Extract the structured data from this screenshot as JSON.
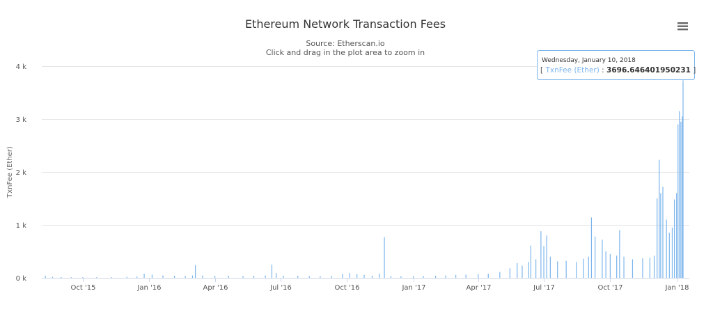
{
  "chart_data": {
    "type": "bar",
    "title": "Ethereum Network Transaction Fees",
    "subtitle_source": "Source: Etherscan.io",
    "subtitle_hint": "Click and drag in the plot area to zoom in",
    "ylabel": "TxnFee (Ether)",
    "xlabel": "",
    "ylim": [
      0,
      4000
    ],
    "y_ticks": [
      "0 k",
      "1 k",
      "2 k",
      "3 k",
      "4 k"
    ],
    "x_range": [
      "2015-08-07",
      "2018-01-10"
    ],
    "x_ticks": [
      {
        "date": "2015-10-01",
        "label": "Oct '15"
      },
      {
        "date": "2016-01-01",
        "label": "Jan '16"
      },
      {
        "date": "2016-04-01",
        "label": "Apr '16"
      },
      {
        "date": "2016-07-01",
        "label": "Jul '16"
      },
      {
        "date": "2016-10-01",
        "label": "Oct '16"
      },
      {
        "date": "2017-01-01",
        "label": "Jan '17"
      },
      {
        "date": "2017-04-01",
        "label": "Apr '17"
      },
      {
        "date": "2017-07-01",
        "label": "Jul '17"
      },
      {
        "date": "2017-10-01",
        "label": "Oct '17"
      },
      {
        "date": "2018-01-01",
        "label": "Jan '18"
      }
    ],
    "series": [
      {
        "name": "TxnFee (Ether)",
        "color": "#7cb5ec",
        "points": [
          [
            "2015-08-10",
            40
          ],
          [
            "2015-08-20",
            20
          ],
          [
            "2015-09-01",
            15
          ],
          [
            "2015-09-15",
            10
          ],
          [
            "2015-10-01",
            12
          ],
          [
            "2015-10-20",
            10
          ],
          [
            "2015-11-10",
            12
          ],
          [
            "2015-12-01",
            18
          ],
          [
            "2015-12-15",
            25
          ],
          [
            "2015-12-25",
            80
          ],
          [
            "2016-01-05",
            60
          ],
          [
            "2016-01-20",
            45
          ],
          [
            "2016-02-05",
            40
          ],
          [
            "2016-02-20",
            35
          ],
          [
            "2016-03-01",
            45
          ],
          [
            "2016-03-05",
            240
          ],
          [
            "2016-03-15",
            45
          ],
          [
            "2016-04-01",
            40
          ],
          [
            "2016-04-20",
            40
          ],
          [
            "2016-05-10",
            35
          ],
          [
            "2016-05-25",
            40
          ],
          [
            "2016-06-10",
            45
          ],
          [
            "2016-06-19",
            250
          ],
          [
            "2016-06-25",
            90
          ],
          [
            "2016-07-05",
            40
          ],
          [
            "2016-07-25",
            40
          ],
          [
            "2016-08-10",
            30
          ],
          [
            "2016-08-25",
            30
          ],
          [
            "2016-09-10",
            35
          ],
          [
            "2016-09-25",
            75
          ],
          [
            "2016-10-05",
            90
          ],
          [
            "2016-10-15",
            70
          ],
          [
            "2016-10-25",
            55
          ],
          [
            "2016-11-05",
            40
          ],
          [
            "2016-11-15",
            80
          ],
          [
            "2016-11-22",
            770
          ],
          [
            "2016-12-01",
            35
          ],
          [
            "2016-12-15",
            30
          ],
          [
            "2017-01-01",
            30
          ],
          [
            "2017-01-15",
            35
          ],
          [
            "2017-02-01",
            40
          ],
          [
            "2017-02-15",
            45
          ],
          [
            "2017-03-01",
            55
          ],
          [
            "2017-03-15",
            60
          ],
          [
            "2017-04-01",
            70
          ],
          [
            "2017-04-15",
            80
          ],
          [
            "2017-05-01",
            110
          ],
          [
            "2017-05-15",
            180
          ],
          [
            "2017-05-25",
            280
          ],
          [
            "2017-06-01",
            230
          ],
          [
            "2017-06-10",
            300
          ],
          [
            "2017-06-13",
            610
          ],
          [
            "2017-06-20",
            350
          ],
          [
            "2017-06-27",
            880
          ],
          [
            "2017-07-01",
            600
          ],
          [
            "2017-07-05",
            800
          ],
          [
            "2017-07-10",
            400
          ],
          [
            "2017-07-20",
            310
          ],
          [
            "2017-08-01",
            320
          ],
          [
            "2017-08-15",
            300
          ],
          [
            "2017-08-25",
            360
          ],
          [
            "2017-09-01",
            400
          ],
          [
            "2017-09-05",
            1140
          ],
          [
            "2017-09-10",
            780
          ],
          [
            "2017-09-20",
            720
          ],
          [
            "2017-09-25",
            500
          ],
          [
            "2017-10-01",
            450
          ],
          [
            "2017-10-10",
            420
          ],
          [
            "2017-10-14",
            900
          ],
          [
            "2017-10-20",
            400
          ],
          [
            "2017-11-01",
            350
          ],
          [
            "2017-11-15",
            370
          ],
          [
            "2017-11-25",
            380
          ],
          [
            "2017-12-01",
            420
          ],
          [
            "2017-12-05",
            1500
          ],
          [
            "2017-12-08",
            2230
          ],
          [
            "2017-12-10",
            1600
          ],
          [
            "2017-12-13",
            1720
          ],
          [
            "2017-12-18",
            1100
          ],
          [
            "2017-12-22",
            850
          ],
          [
            "2017-12-26",
            950
          ],
          [
            "2017-12-29",
            1480
          ],
          [
            "2018-01-01",
            1600
          ],
          [
            "2018-01-03",
            2900
          ],
          [
            "2018-01-05",
            3150
          ],
          [
            "2018-01-07",
            2950
          ],
          [
            "2018-01-09",
            3050
          ],
          [
            "2018-01-10",
            3696.646401950231
          ]
        ]
      }
    ],
    "tooltip": {
      "date": "Wednesday, January 10, 2018",
      "series": "TxnFee (Ether)",
      "value": "3696.646401950231",
      "point_date": "2018-01-10",
      "point_value": 3696.646401950231
    },
    "grid": true,
    "legend": "none"
  },
  "toolbar": {
    "menu_icon": "hamburger-menu-icon"
  },
  "colors": {
    "bar": "#7cb5ec",
    "grid": "#e6e6e6",
    "axis": "#ccd6eb",
    "tooltip_border": "#7cb5ec"
  }
}
